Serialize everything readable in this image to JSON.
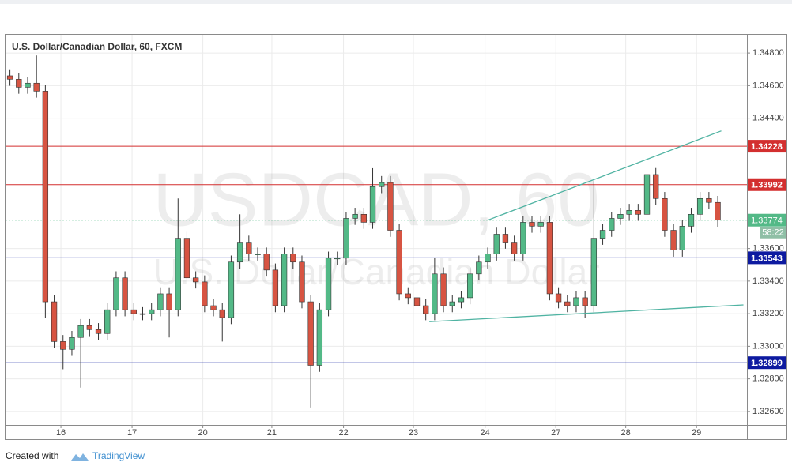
{
  "chart_data": {
    "type": "candlestick",
    "title": "U.S. Dollar/Canadian Dollar, 60, FXCM",
    "watermark": "USDCAD, 60",
    "watermark_subtitle": "U.S. Dollar/Canadian Dollar",
    "up_color": "#53b987",
    "down_color": "#d75442",
    "grid": true,
    "xlim": [
      0,
      83.8
    ],
    "xticks": [
      {
        "value": 6.26,
        "label": "16"
      },
      {
        "value": 14.3,
        "label": "17"
      },
      {
        "value": 22.3,
        "label": "20"
      },
      {
        "value": 30.1,
        "label": "21"
      },
      {
        "value": 38.2,
        "label": "22"
      },
      {
        "value": 46.1,
        "label": "23"
      },
      {
        "value": 54.2,
        "label": "24"
      },
      {
        "value": 62.2,
        "label": "27"
      },
      {
        "value": 70.1,
        "label": "28"
      },
      {
        "value": 78.1,
        "label": "29"
      }
    ],
    "ylim": [
      1.32517,
      1.34912
    ],
    "yticks": [
      {
        "value": 1.348,
        "label": "1.34800"
      },
      {
        "value": 1.346,
        "label": "1.34600"
      },
      {
        "value": 1.344,
        "label": "1.34400"
      },
      {
        "value": 1.336,
        "label": "1.33600"
      },
      {
        "value": 1.334,
        "label": "1.33400"
      },
      {
        "value": 1.332,
        "label": "1.33200"
      },
      {
        "value": 1.33,
        "label": "1.33000"
      },
      {
        "value": 1.328,
        "label": "1.32800"
      },
      {
        "value": 1.326,
        "label": "1.32600"
      }
    ],
    "open": [
      1.3466,
      1.34639,
      1.3459,
      1.34615,
      1.34566,
      1.33273,
      1.33029,
      1.32981,
      1.33054,
      1.33127,
      1.33102,
      1.33078,
      1.33224,
      1.3342,
      1.33224,
      1.332,
      1.332,
      1.33224,
      1.33322,
      1.33224,
      1.33663,
      1.3342,
      1.33395,
      1.33249,
      1.33224,
      1.33176,
      1.33517,
      1.33639,
      1.33566,
      1.33566,
      1.33468,
      1.33249,
      1.33566,
      1.33517,
      1.33273,
      1.32883,
      1.33224,
      1.33541,
      1.33541,
      1.33785,
      1.3381,
      1.33761,
      1.3398,
      1.34005,
      1.33712,
      1.33322,
      1.33298,
      1.33249,
      1.332,
      1.33444,
      1.33249,
      1.33273,
      1.33298,
      1.33444,
      1.33517,
      1.33566,
      1.33688,
      1.33639,
      1.33566,
      1.33761,
      1.33737,
      1.33761,
      1.33322,
      1.33273,
      1.33249,
      1.33298,
      1.33249,
      1.33663,
      1.33712,
      1.33785,
      1.3381,
      1.33834,
      1.3381,
      1.34054,
      1.33907,
      1.33712,
      1.3359,
      1.33737,
      1.3381,
      1.33907,
      1.33883
    ],
    "high": [
      1.347,
      1.34679,
      1.34655,
      1.34785,
      1.34606,
      1.33313,
      1.33069,
      1.33094,
      1.33167,
      1.33167,
      1.33142,
      1.33264,
      1.3346,
      1.3346,
      1.33264,
      1.3324,
      1.33264,
      1.33362,
      1.33362,
      1.33907,
      1.33703,
      1.3346,
      1.33435,
      1.33289,
      1.33264,
      1.33557,
      1.3381,
      1.33679,
      1.33606,
      1.33606,
      1.33508,
      1.33606,
      1.33606,
      1.33557,
      1.33313,
      1.33264,
      1.33581,
      1.33581,
      1.33825,
      1.3385,
      1.3385,
      1.34093,
      1.34045,
      1.34045,
      1.33752,
      1.33362,
      1.33338,
      1.33289,
      1.33541,
      1.33484,
      1.33313,
      1.33338,
      1.33484,
      1.33557,
      1.33606,
      1.33728,
      1.33728,
      1.33679,
      1.33801,
      1.33801,
      1.33801,
      1.33801,
      1.33362,
      1.33313,
      1.33338,
      1.33338,
      1.34015,
      1.33752,
      1.33825,
      1.3385,
      1.33874,
      1.33874,
      1.34127,
      1.34094,
      1.33947,
      1.33752,
      1.33777,
      1.3385,
      1.33947,
      1.33947,
      1.33923
    ],
    "low": [
      1.34599,
      1.3455,
      1.3455,
      1.34526,
      1.33176,
      1.32989,
      1.32859,
      1.32941,
      1.32746,
      1.33062,
      1.33038,
      1.33038,
      1.33184,
      1.33184,
      1.3316,
      1.3316,
      1.3316,
      1.33184,
      1.33054,
      1.33184,
      1.3338,
      1.33355,
      1.33209,
      1.33184,
      1.33029,
      1.33136,
      1.33477,
      1.33526,
      1.33526,
      1.33428,
      1.33209,
      1.33209,
      1.33477,
      1.33233,
      1.32624,
      1.32843,
      1.33184,
      1.33501,
      1.33501,
      1.33745,
      1.33721,
      1.33721,
      1.3394,
      1.33672,
      1.33282,
      1.33258,
      1.33209,
      1.3316,
      1.3316,
      1.33209,
      1.33209,
      1.33233,
      1.33258,
      1.33404,
      1.33477,
      1.33526,
      1.33599,
      1.33526,
      1.33526,
      1.33697,
      1.33697,
      1.33282,
      1.33233,
      1.33209,
      1.33209,
      1.33176,
      1.33209,
      1.33623,
      1.33672,
      1.33745,
      1.3377,
      1.3377,
      1.3377,
      1.33867,
      1.33672,
      1.3355,
      1.3355,
      1.33697,
      1.3377,
      1.33843,
      1.33734
    ],
    "close": [
      1.34639,
      1.3459,
      1.34615,
      1.34566,
      1.33273,
      1.33029,
      1.32981,
      1.33054,
      1.33127,
      1.33102,
      1.33078,
      1.33224,
      1.3342,
      1.33224,
      1.332,
      1.332,
      1.33224,
      1.33322,
      1.33224,
      1.33663,
      1.3342,
      1.33395,
      1.33249,
      1.33224,
      1.33176,
      1.33517,
      1.33639,
      1.33566,
      1.33566,
      1.33468,
      1.33249,
      1.33566,
      1.33517,
      1.33273,
      1.32883,
      1.33224,
      1.33541,
      1.33541,
      1.33785,
      1.3381,
      1.33761,
      1.3398,
      1.34005,
      1.33712,
      1.33322,
      1.33298,
      1.33249,
      1.332,
      1.33444,
      1.33249,
      1.33273,
      1.33298,
      1.33444,
      1.33517,
      1.33566,
      1.33688,
      1.33639,
      1.33566,
      1.33761,
      1.33737,
      1.33761,
      1.33322,
      1.33273,
      1.33249,
      1.33298,
      1.33249,
      1.33663,
      1.33712,
      1.33785,
      1.3381,
      1.33834,
      1.3381,
      1.34054,
      1.33907,
      1.33712,
      1.3359,
      1.33737,
      1.3381,
      1.33907,
      1.33883,
      1.33774
    ],
    "hlines": [
      {
        "value": 1.34228,
        "color": "#d32f2f"
      },
      {
        "value": 1.33992,
        "color": "#d32f2f"
      },
      {
        "value": 1.33543,
        "color": "#0d1aa0"
      },
      {
        "value": 1.32899,
        "color": "#0d1aa0"
      }
    ],
    "trendlines": [
      {
        "x": [
          54.6,
          80.9
        ],
        "y": [
          1.33776,
          1.34322
        ],
        "color": "#4fb3a2"
      },
      {
        "x": [
          47.9,
          83.4
        ],
        "y": [
          1.33151,
          1.33254
        ],
        "color": "#4fb3a2"
      }
    ],
    "last_price": 1.33774,
    "countdown": "58:22"
  },
  "footer": {
    "created_with": "Created with",
    "brand": "TradingView"
  }
}
